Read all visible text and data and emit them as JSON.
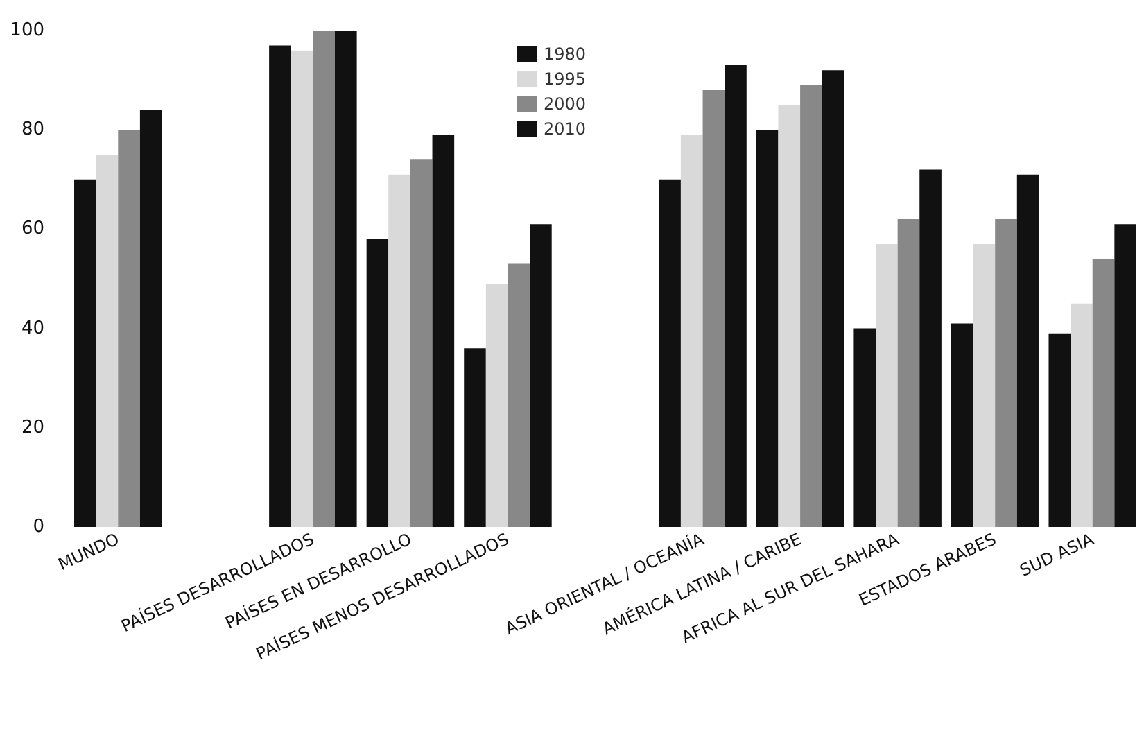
{
  "chart_data": {
    "type": "bar",
    "categories": [
      "MUNDO",
      null,
      "PAÍSES DESARROLLADOS",
      "PAÍSES EN DESARROLLO",
      "PAÍSES MENOS DESARROLLADOS",
      null,
      "ASIA ORIENTAL / OCEANÍA",
      "AMÉRICA LATINA / CARIBE",
      "AFRICA AL SUR DEL SAHARA",
      "ESTADOS ARABES",
      "SUD ASIA"
    ],
    "series": [
      {
        "name": "1980",
        "color": "#111111",
        "values": [
          70,
          null,
          97,
          58,
          36,
          null,
          70,
          80,
          40,
          41,
          39
        ]
      },
      {
        "name": "1995",
        "color": "#d9d9d9",
        "values": [
          75,
          null,
          96,
          71,
          49,
          null,
          79,
          85,
          57,
          57,
          45
        ]
      },
      {
        "name": "2000",
        "color": "#888888",
        "values": [
          80,
          null,
          100,
          74,
          53,
          null,
          88,
          89,
          62,
          62,
          54
        ]
      },
      {
        "name": "2010",
        "color": "#111111",
        "values": [
          84,
          null,
          100,
          79,
          61,
          null,
          93,
          92,
          72,
          71,
          61
        ]
      }
    ],
    "ylim": [
      0,
      100
    ],
    "yticks": [
      0,
      20,
      40,
      60,
      80,
      100
    ],
    "grid": false,
    "legend": "top"
  }
}
